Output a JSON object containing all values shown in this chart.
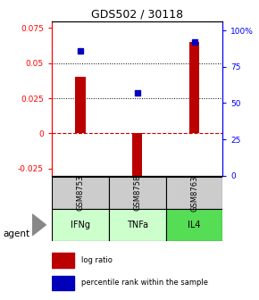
{
  "title": "GDS502 / 30118",
  "samples": [
    "GSM8753",
    "GSM8758",
    "GSM8763"
  ],
  "agents": [
    "IFNg",
    "TNFa",
    "IL4"
  ],
  "log_ratios": [
    0.04,
    -0.032,
    0.065
  ],
  "percentile_ranks": [
    0.86,
    0.57,
    0.92
  ],
  "bar_color": "#bb0000",
  "dot_color": "#0000bb",
  "ylim_left": [
    -0.03,
    0.08
  ],
  "ylim_right": [
    0.0,
    1.0667
  ],
  "yticks_left": [
    -0.025,
    0,
    0.025,
    0.05,
    0.075
  ],
  "ytick_labels_left": [
    "-0.025",
    "0",
    "0.025",
    "0.05",
    "0.075"
  ],
  "yticks_right": [
    0.0,
    0.25,
    0.5,
    0.75,
    1.0
  ],
  "ytick_labels_right": [
    "0",
    "25",
    "50",
    "75",
    "100%"
  ],
  "hlines": [
    0.025,
    0.05
  ],
  "zero_line_color": "#cc0000",
  "hline_color": "#000000",
  "agent_colors": [
    "#ccffcc",
    "#ccffcc",
    "#55dd55"
  ],
  "sample_bg_color": "#cccccc",
  "legend_log_ratio": "log ratio",
  "legend_percentile": "percentile rank within the sample",
  "agent_label": "agent"
}
